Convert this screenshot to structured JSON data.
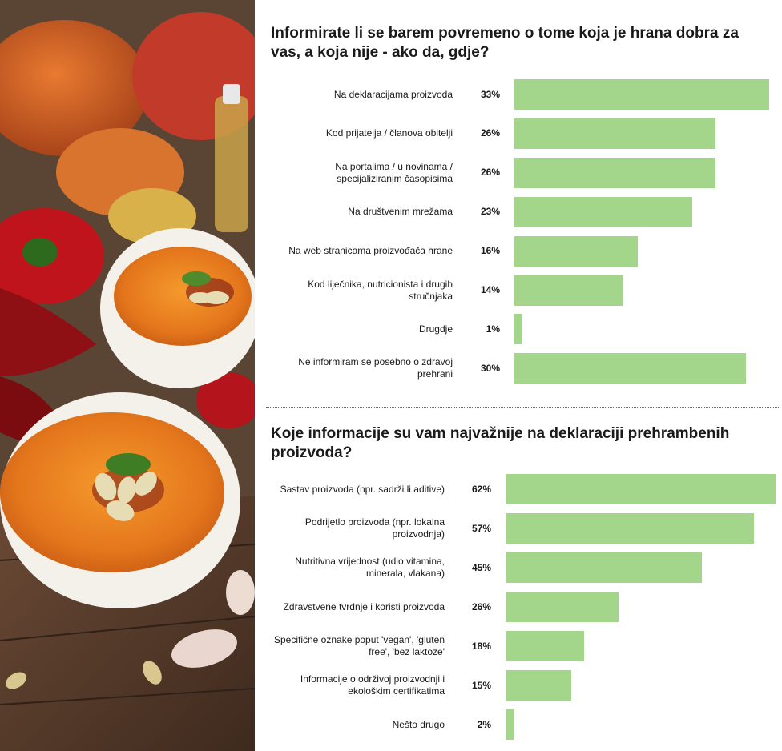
{
  "chart_data": [
    {
      "type": "bar",
      "orientation": "horizontal",
      "title": "Informirate li se barem povremeno o tome koja je hrana dobra za vas, a koja nije - ako da, gdje?",
      "categories": [
        "Na deklaracijama proizvoda",
        "Kod prijatelja / članova obitelji",
        "Na portalima / u novinama / specijaliziranim časopisima",
        "Na društvenim mrežama",
        "Na web stranicama proizvođača hrane",
        "Kod liječnika, nutricionista i drugih stručnjaka",
        "Drugdje",
        "Ne informiram se posebno o zdravoj prehrani"
      ],
      "values": [
        33,
        26,
        26,
        23,
        16,
        14,
        1,
        30
      ],
      "value_labels": [
        "33%",
        "26%",
        "26%",
        "23%",
        "16%",
        "14%",
        "1%",
        "30%"
      ],
      "unit": "%",
      "xlim": [
        0,
        33
      ],
      "bar_color": "#a3d58a",
      "grid": false
    },
    {
      "type": "bar",
      "orientation": "horizontal",
      "title": "Koje informacije su vam najvažnije na deklaraciji prehrambenih proizvoda?",
      "categories": [
        "Sastav proizvoda (npr. sadrži li aditive)",
        "Podrijetlo proizvoda (npr. lokalna proizvodnja)",
        "Nutritivna vrijednost (udio vitamina, minerala, vlakana)",
        "Zdravstvene tvrdnje i koristi proizvoda",
        "Specifične oznake poput 'vegan', 'gluten free', 'bez laktoze'",
        "Informacije o održivoj proizvodnji i ekološkim certifikatima",
        "Nešto drugo"
      ],
      "values": [
        62,
        57,
        45,
        26,
        18,
        15,
        2
      ],
      "value_labels": [
        "62%",
        "57%",
        "45%",
        "26%",
        "18%",
        "15%",
        "2%"
      ],
      "unit": "%",
      "xlim": [
        0,
        62
      ],
      "bar_color": "#a3d58a",
      "grid": false
    }
  ],
  "photo": {
    "subject": "pumpkin-soup-bowls-icon"
  }
}
